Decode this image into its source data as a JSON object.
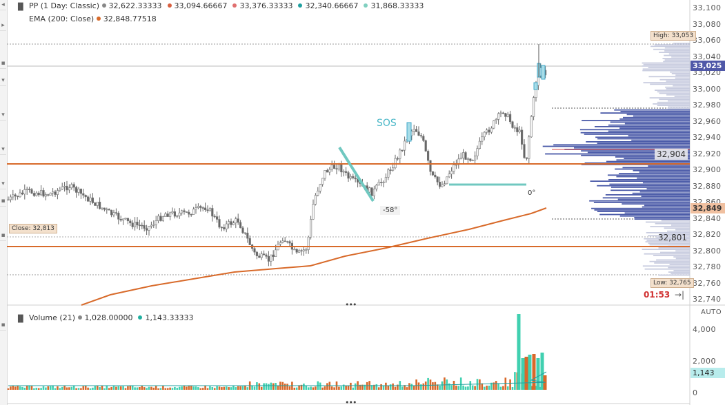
{
  "legend": {
    "pp": {
      "label": "PP (1 Day: Classic)",
      "values": [
        {
          "text": "32,622.33333",
          "color": "#888888"
        },
        {
          "text": "33,094.66667",
          "color": "#d86040"
        },
        {
          "text": "33,376.33333",
          "color": "#e07070"
        },
        {
          "text": "32,340.66667",
          "color": "#20a0a0"
        },
        {
          "text": "31,868.33333",
          "color": "#80d0c0"
        }
      ]
    },
    "ema": {
      "label": "EMA (200: Close)",
      "value": "32,848.77518",
      "color": "#d86a2a"
    },
    "volume": {
      "label": "Volume (21)",
      "values": [
        {
          "text": "1,028.00000",
          "color": "#888888"
        },
        {
          "text": "1,143.33333",
          "color": "#20b0a0"
        }
      ]
    }
  },
  "price_axis": {
    "ticks": [
      "33,100",
      "33,080",
      "33,060",
      "33,040",
      "33,020",
      "33,000",
      "32,980",
      "32,960",
      "32,940",
      "32,920",
      "32,900",
      "32,880",
      "32,860",
      "32,840",
      "32,820",
      "32,800",
      "32,780",
      "32,760",
      "32,740"
    ],
    "current_price": "33,025",
    "ema_price": "32,849"
  },
  "volume_axis": {
    "ticks": [
      "AUTO",
      "4,000",
      "2,000",
      "0"
    ],
    "current_volume": "1,143"
  },
  "tags": {
    "high": "High: 33,053",
    "low": "Low: 32,765",
    "close": "Close: 32,813"
  },
  "levels": {
    "upper": "32,904",
    "lower": "32,801"
  },
  "annotations": {
    "sos": "SOS",
    "angle1": "-58°",
    "angle2": "0°"
  },
  "countdown": "01:53",
  "toolbar": {
    "collapse_icon": "collapse-arrow-icon"
  },
  "colors": {
    "ema": "#d86a2a",
    "level": "#d86a2a",
    "profile": "#4a5aa8",
    "bullish_volume": "#40d0b0",
    "bearish_volume": "#d8682a",
    "candle": "#555555",
    "trendline": "#70c8c0",
    "current_price_bg": "#5058a8",
    "ema_price_bg": "#f0c0a0"
  }
}
